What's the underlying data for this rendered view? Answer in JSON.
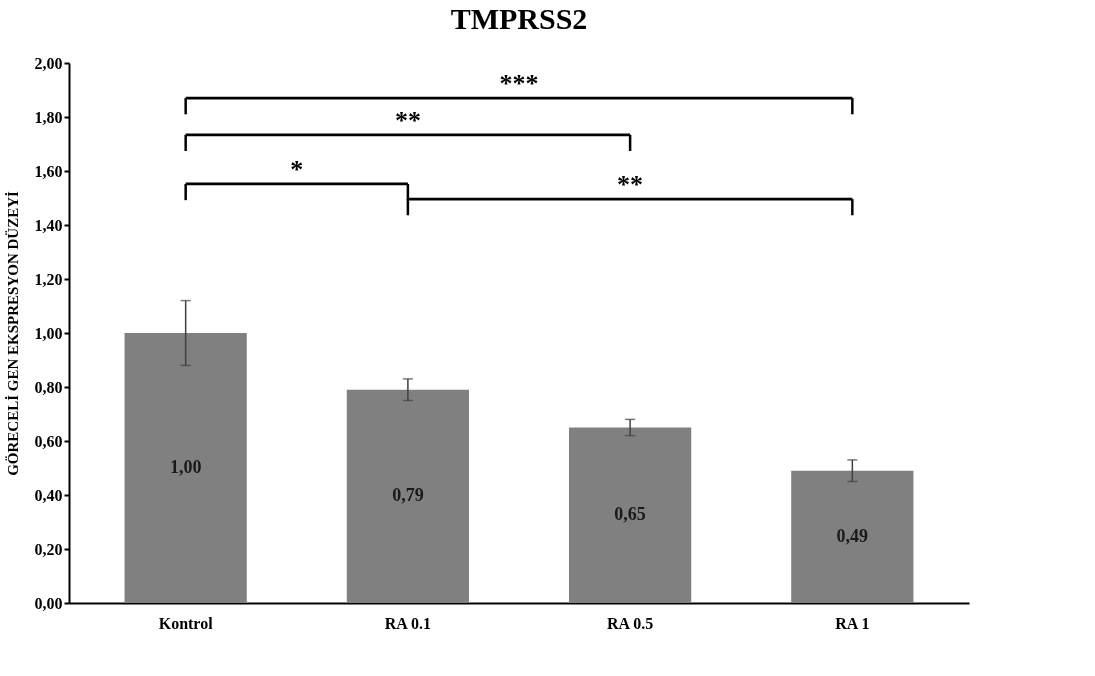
{
  "chart_data": {
    "type": "bar",
    "title": "TMPRSS2",
    "ylabel": "GÖRECELİ GEN EKSPRESYON DÜZEYİ",
    "categories": [
      "Kontrol",
      "RA 0.1",
      "RA 0.5",
      "RA 1"
    ],
    "values": [
      1.0,
      0.79,
      0.65,
      0.49
    ],
    "color": "#808080",
    "errors": [
      0.12,
      0.04,
      0.03,
      0.04
    ],
    "value_labels": [
      "1,00",
      "0,79",
      "0,65",
      "0,49"
    ],
    "ylim": [
      0,
      2
    ],
    "yticks": [
      {
        "value": 0,
        "label": "0,00"
      },
      {
        "value": 0.2,
        "label": "0,20"
      },
      {
        "value": 0.4,
        "label": "0,40"
      },
      {
        "value": 0.6,
        "label": "0,60"
      },
      {
        "value": 0.8,
        "label": "0,80"
      },
      {
        "value": 1.0,
        "label": "1,00"
      },
      {
        "value": 1.2,
        "label": "1,20"
      },
      {
        "value": 1.4,
        "label": "1,40"
      },
      {
        "value": 1.6,
        "label": "1,60"
      },
      {
        "value": 1.8,
        "label": "1,80"
      },
      {
        "value": 2.0,
        "label": "2,00"
      }
    ],
    "grid": false,
    "annotations": [
      "***",
      "**",
      "*",
      "**"
    ]
  }
}
